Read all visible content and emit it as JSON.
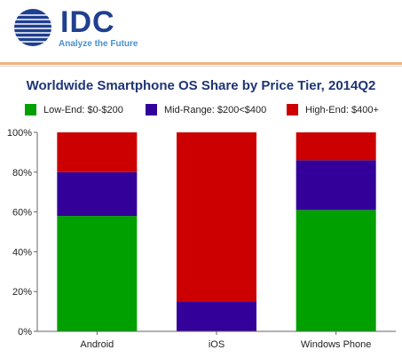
{
  "header": {
    "logo_text": "IDC",
    "tagline": "Analyze the Future",
    "colors": {
      "logo": "#1f3f8f",
      "tagline": "#4a8fd0",
      "rule": "#f3b07e"
    }
  },
  "chart_data": {
    "type": "bar",
    "stacked": true,
    "title": "Worldwide Smartphone OS Share by Price Tier, 2014Q2",
    "categories": [
      "Android",
      "iOS",
      "Windows Phone"
    ],
    "series": [
      {
        "name": "Low-End: $0-$200",
        "color": "#00a000",
        "values": [
          58,
          0,
          61
        ]
      },
      {
        "name": "Mid-Range: $200<$400",
        "color": "#330099",
        "values": [
          22,
          15,
          25
        ]
      },
      {
        "name": "High-End: $400+",
        "color": "#cc0000",
        "values": [
          20,
          85,
          14
        ]
      }
    ],
    "ylim": [
      0,
      100
    ],
    "yticks": [
      "0%",
      "20%",
      "40%",
      "60%",
      "80%",
      "100%"
    ],
    "legend_position": "top",
    "grid": false
  }
}
